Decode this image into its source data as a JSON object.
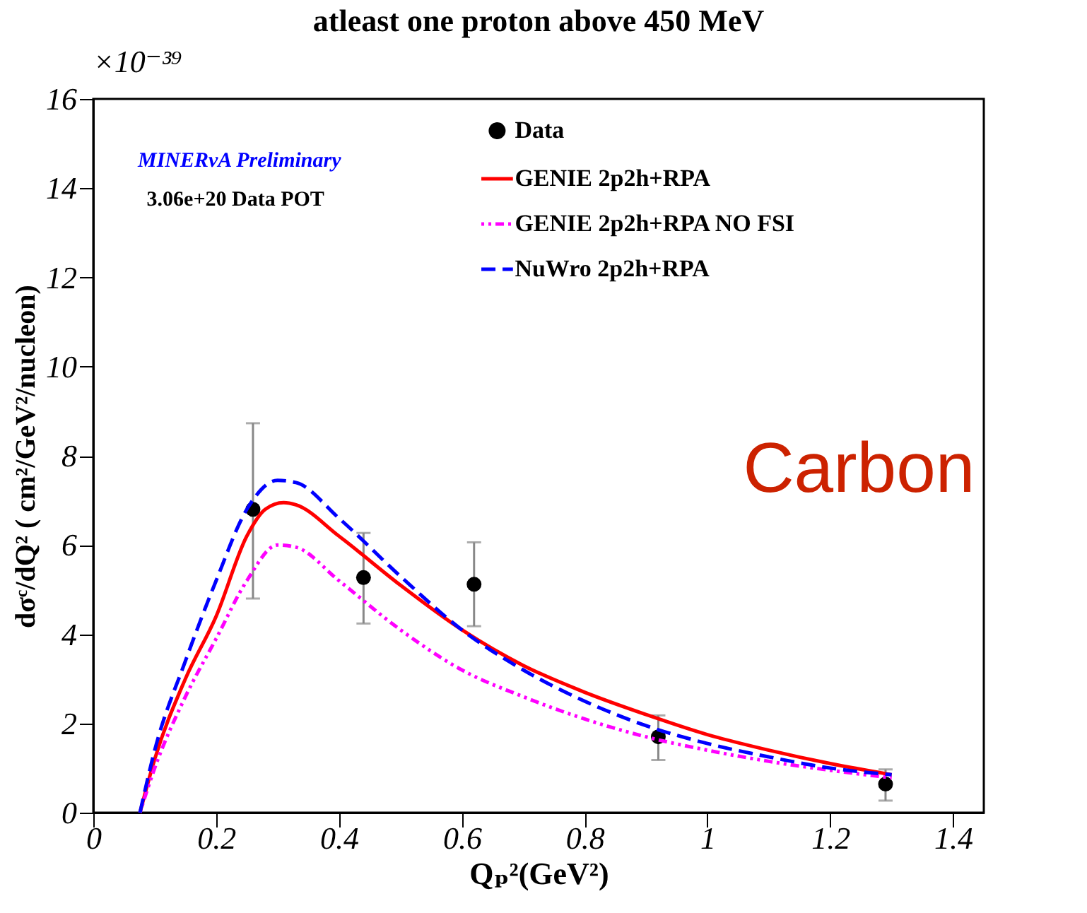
{
  "chart_data": {
    "type": "line",
    "title": "atleast one proton above 450 MeV",
    "xlabel": "Qₚ²(GeV²)",
    "ylabel": "dσᶜ/dQ² ( cm²/GeV²/nucleon)",
    "xlim": [
      0,
      1.45
    ],
    "xticks": [
      0,
      0.2,
      0.4,
      0.6,
      0.8,
      1,
      1.2,
      1.4
    ],
    "ylim": [
      0,
      16
    ],
    "yticks": [
      0,
      2,
      4,
      6,
      8,
      10,
      12,
      14,
      16
    ],
    "grid": false,
    "legend": "top right",
    "annotations": [
      "×10⁻³⁹",
      "MINERvA Preliminary",
      "3.06e+20 Data POT",
      "Carbon"
    ],
    "series": [
      {
        "name": "Data",
        "type": "scatter",
        "marker": "circle",
        "color": "#000000",
        "x": [
          0.26,
          0.44,
          0.62,
          0.92,
          1.29
        ],
        "values": [
          6.8,
          5.27,
          5.12,
          1.7,
          0.64
        ],
        "errors": [
          [
            4.8,
            8.73
          ],
          [
            4.24,
            6.27
          ],
          [
            4.18,
            6.06
          ],
          [
            1.18,
            2.18
          ],
          [
            0.27,
            0.97
          ]
        ]
      },
      {
        "name": "GENIE 2p2h+RPA",
        "type": "line",
        "line_style": "solid",
        "color": "#ff0000",
        "x": [
          0.076,
          0.1,
          0.15,
          0.2,
          0.25,
          0.28,
          0.31,
          0.33,
          0.4,
          0.5,
          0.6,
          0.7,
          0.8,
          0.9,
          1.0,
          1.1,
          1.2,
          1.3
        ],
        "values": [
          0,
          1.2,
          3.0,
          4.4,
          6.2,
          6.8,
          6.95,
          6.9,
          6.2,
          5.1,
          4.1,
          3.3,
          2.7,
          2.2,
          1.75,
          1.4,
          1.1,
          0.85
        ]
      },
      {
        "name": "GENIE 2p2h+RPA NO FSI",
        "type": "line",
        "line_style": "dotted",
        "color": "#ff00ff",
        "x": [
          0.076,
          0.1,
          0.15,
          0.2,
          0.25,
          0.3,
          0.33,
          0.4,
          0.5,
          0.6,
          0.7,
          0.8,
          0.9,
          1.0,
          1.1,
          1.2,
          1.3
        ],
        "values": [
          0,
          1.0,
          2.6,
          3.9,
          5.2,
          6.0,
          5.95,
          5.2,
          4.1,
          3.2,
          2.6,
          2.1,
          1.7,
          1.4,
          1.15,
          0.95,
          0.78
        ]
      },
      {
        "name": "NuWro 2p2h+RPA",
        "type": "line",
        "line_style": "dashed",
        "color": "#0000ff",
        "x": [
          0.076,
          0.1,
          0.15,
          0.2,
          0.25,
          0.3,
          0.33,
          0.4,
          0.5,
          0.6,
          0.7,
          0.8,
          0.9,
          1.0,
          1.1,
          1.2,
          1.3
        ],
        "values": [
          0,
          1.4,
          3.4,
          5.2,
          6.8,
          7.45,
          7.4,
          6.6,
          5.3,
          4.1,
          3.2,
          2.5,
          1.95,
          1.55,
          1.25,
          1.0,
          0.85
        ]
      }
    ]
  }
}
